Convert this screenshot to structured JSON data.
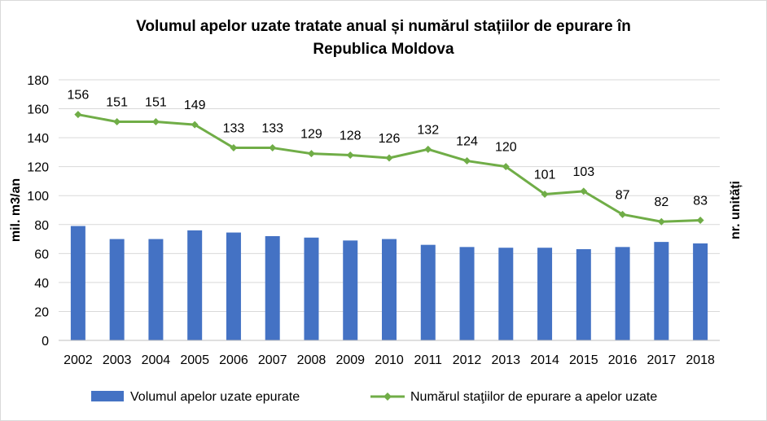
{
  "chart_data": {
    "type": "bar+line",
    "title_line1": "Volumul apelor uzate tratate anual și numărul stațiilor de epurare în",
    "title_line2": "Republica Moldova",
    "ylabel_left": "mil. m3/an",
    "ylabel_right": "nr. unități",
    "ylim": [
      0,
      180
    ],
    "yticks": [
      "0",
      "20",
      "40",
      "60",
      "80",
      "100",
      "120",
      "140",
      "160",
      "180"
    ],
    "categories": [
      "2002",
      "2003",
      "2004",
      "2005",
      "2006",
      "2007",
      "2008",
      "2009",
      "2010",
      "2011",
      "2012",
      "2013",
      "2014",
      "2015",
      "2016",
      "2017",
      "2018"
    ],
    "series": [
      {
        "name": "Volumul apelor uzate epurate",
        "type": "bar",
        "color": "#4472c4",
        "values": [
          79,
          70,
          70,
          76,
          74.5,
          72,
          71,
          69,
          70,
          66,
          64.5,
          64,
          64,
          63,
          64.5,
          68,
          67
        ]
      },
      {
        "name": "Numărul staţiilor de epurare a apelor uzate",
        "type": "line",
        "color": "#70ad47",
        "values": [
          156,
          151,
          151,
          149,
          133,
          133,
          129,
          128,
          126,
          132,
          124,
          120,
          101,
          103,
          87,
          82,
          83
        ],
        "labels": [
          "156",
          "151",
          "151",
          "149",
          "133",
          "133",
          "129",
          "128",
          "126",
          "132",
          "124",
          "120",
          "101",
          "103",
          "87",
          "82",
          "83"
        ]
      }
    ],
    "grid": true,
    "legend": "bottom"
  }
}
